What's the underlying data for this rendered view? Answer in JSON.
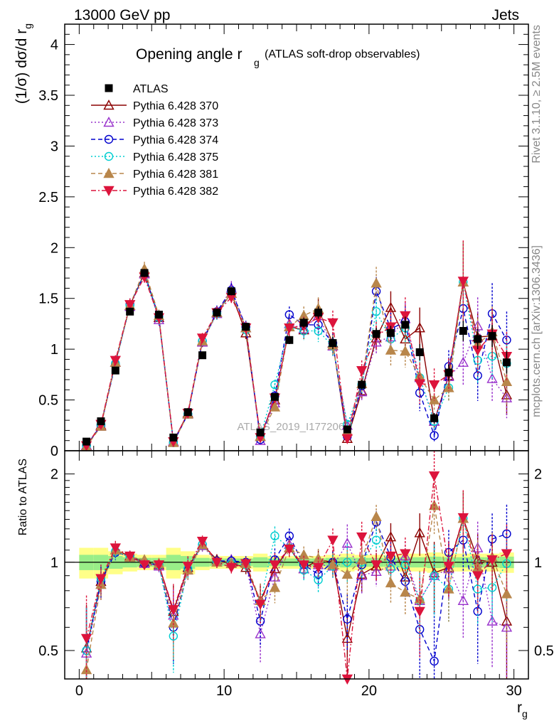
{
  "header": {
    "left": "13000 GeV pp",
    "right": "Jets"
  },
  "side_labels": {
    "rivet": "Rivet 3.1.10, ≥ 2.5M events",
    "mcplots": "mcplots.cern.ch [arXiv:1306.3436]"
  },
  "watermark": "ATLAS_2019_I1772062",
  "chart_data": [
    {
      "type": "line",
      "title": "Opening angle r_g (ATLAS soft-drop observables)",
      "title_main": "Opening angle r",
      "title_sub": "g",
      "title_tail": "(ATLAS soft-drop observables)",
      "ylabel": "(1/σ) dσ/d r_g",
      "ylabel_main": "(1/σ) dσ/d r",
      "ylabel_sub": "g",
      "xlim": [
        -1,
        31
      ],
      "ylim": [
        0,
        4.2
      ],
      "yticks": [
        "0",
        "0.5",
        "1",
        "1.5",
        "2",
        "2.5",
        "3",
        "3.5",
        "4"
      ],
      "ytick_values": [
        0,
        0.5,
        1,
        1.5,
        2,
        2.5,
        3,
        3.5,
        4
      ],
      "legend_position": "top-left",
      "x": [
        0.5,
        1.5,
        2.5,
        3.5,
        4.5,
        5.5,
        6.5,
        7.5,
        8.5,
        9.5,
        10.5,
        11.5,
        12.5,
        13.5,
        14.5,
        15.5,
        16.5,
        17.5,
        18.5,
        19.5,
        20.5,
        21.5,
        22.5,
        23.5,
        24.5,
        25.5,
        26.5,
        27.5,
        28.5,
        29.5
      ],
      "series": [
        {
          "name": "ATLAS",
          "color": "#000000",
          "marker": "square-filled",
          "dash": "none",
          "values": [
            0.09,
            0.29,
            0.79,
            1.37,
            1.75,
            1.34,
            0.13,
            0.38,
            0.94,
            1.36,
            1.57,
            1.22,
            0.18,
            0.53,
            1.09,
            1.26,
            1.36,
            1.06,
            0.21,
            0.65,
            1.15,
            1.16,
            1.24,
            0.97,
            0.32,
            0.77,
            1.18,
            1.1,
            1.13,
            0.87
          ],
          "err": [
            0.02,
            0.02,
            0.03,
            0.03,
            0.04,
            0.04,
            0.02,
            0.02,
            0.03,
            0.04,
            0.04,
            0.04,
            0.02,
            0.03,
            0.04,
            0.05,
            0.06,
            0.06,
            0.03,
            0.05,
            0.06,
            0.07,
            0.08,
            0.08,
            0.05,
            0.08,
            0.1,
            0.1,
            0.11,
            0.11
          ]
        },
        {
          "name": "Pythia 6.428 370",
          "color": "#8b0000",
          "marker": "triangle-up-open",
          "dash": "none",
          "values": [
            0.05,
            0.25,
            0.87,
            1.43,
            1.75,
            1.31,
            0.09,
            0.37,
            1.07,
            1.36,
            1.55,
            1.16,
            0.14,
            0.5,
            1.22,
            1.19,
            1.39,
            1.06,
            0.12,
            0.59,
            1.11,
            1.41,
            1.1,
            1.21,
            0.29,
            0.74,
            1.66,
            1.12,
            1.13,
            0.55
          ],
          "err": [
            0.02,
            0.03,
            0.05,
            0.06,
            0.07,
            0.06,
            0.02,
            0.03,
            0.05,
            0.06,
            0.07,
            0.06,
            0.02,
            0.05,
            0.08,
            0.09,
            0.11,
            0.1,
            0.03,
            0.08,
            0.12,
            0.16,
            0.15,
            0.2,
            0.08,
            0.16,
            0.4,
            0.25,
            0.25,
            0.2
          ]
        },
        {
          "name": "Pythia 6.428 373",
          "color": "#9932cc",
          "marker": "triangle-up-open",
          "dash": "dotted",
          "values": [
            0.05,
            0.24,
            0.87,
            1.42,
            1.74,
            1.29,
            0.09,
            0.36,
            1.07,
            1.35,
            1.6,
            1.21,
            0.1,
            0.47,
            1.25,
            1.2,
            1.33,
            1.03,
            0.25,
            0.58,
            1.07,
            1.12,
            1.3,
            0.72,
            0.29,
            0.73,
            0.87,
            1.23,
            0.71,
            0.52
          ],
          "err": [
            0.02,
            0.03,
            0.05,
            0.06,
            0.07,
            0.06,
            0.02,
            0.03,
            0.05,
            0.06,
            0.07,
            0.06,
            0.02,
            0.05,
            0.08,
            0.09,
            0.11,
            0.1,
            0.04,
            0.08,
            0.12,
            0.15,
            0.16,
            0.18,
            0.08,
            0.16,
            0.22,
            0.28,
            0.22,
            0.2
          ]
        },
        {
          "name": "Pythia 6.428 374",
          "color": "#0000cd",
          "marker": "circle-open",
          "dash": "dashed",
          "values": [
            0.05,
            0.25,
            0.85,
            1.44,
            1.74,
            1.32,
            0.08,
            0.36,
            1.08,
            1.37,
            1.58,
            1.22,
            0.11,
            0.54,
            1.34,
            1.24,
            1.24,
            1.06,
            0.14,
            0.64,
            1.57,
            1.2,
            1.27,
            0.57,
            0.15,
            0.83,
            1.4,
            0.74,
            1.35,
            1.09
          ],
          "err": [
            0.02,
            0.03,
            0.05,
            0.06,
            0.07,
            0.06,
            0.02,
            0.03,
            0.05,
            0.06,
            0.07,
            0.06,
            0.02,
            0.05,
            0.08,
            0.09,
            0.11,
            0.1,
            0.03,
            0.08,
            0.14,
            0.16,
            0.16,
            0.18,
            0.07,
            0.16,
            0.3,
            0.25,
            0.3,
            0.28
          ]
        },
        {
          "name": "Pythia 6.428 375",
          "color": "#00ced1",
          "marker": "circle-open",
          "dash": "dotted",
          "values": [
            0.05,
            0.26,
            0.86,
            1.43,
            1.74,
            1.31,
            0.08,
            0.36,
            1.08,
            1.35,
            1.55,
            1.19,
            0.14,
            0.65,
            1.22,
            1.18,
            1.18,
            1.03,
            0.26,
            0.65,
            1.37,
            1.1,
            1.21,
            0.72,
            0.29,
            0.62,
            1.66,
            0.89,
            0.93,
            0.86
          ],
          "err": [
            0.02,
            0.03,
            0.05,
            0.06,
            0.07,
            0.06,
            0.02,
            0.03,
            0.05,
            0.06,
            0.07,
            0.06,
            0.02,
            0.05,
            0.08,
            0.09,
            0.11,
            0.1,
            0.04,
            0.08,
            0.13,
            0.15,
            0.16,
            0.18,
            0.08,
            0.14,
            0.4,
            0.22,
            0.22,
            0.22
          ]
        },
        {
          "name": "Pythia 6.428 381",
          "color": "#b8864b",
          "marker": "triangle-up-filled",
          "dash": "dashed",
          "values": [
            0.04,
            0.24,
            0.87,
            1.43,
            1.79,
            1.33,
            0.08,
            0.36,
            1.08,
            1.36,
            1.55,
            1.21,
            0.14,
            0.43,
            1.22,
            1.33,
            1.4,
            1.04,
            0.19,
            0.66,
            1.65,
            0.99,
            0.98,
            0.73,
            0.5,
            0.62,
            1.66,
            1.05,
            1.17,
            0.68
          ],
          "err": [
            0.02,
            0.03,
            0.05,
            0.06,
            0.07,
            0.06,
            0.02,
            0.03,
            0.05,
            0.06,
            0.07,
            0.06,
            0.02,
            0.05,
            0.08,
            0.09,
            0.11,
            0.1,
            0.04,
            0.08,
            0.16,
            0.15,
            0.16,
            0.18,
            0.1,
            0.14,
            0.4,
            0.25,
            0.25,
            0.22
          ]
        },
        {
          "name": "Pythia 6.428 382",
          "color": "#dc143c",
          "marker": "triangle-down-filled",
          "dash": "dashdot",
          "values": [
            0.05,
            0.26,
            0.89,
            1.44,
            1.71,
            1.31,
            0.09,
            0.37,
            1.11,
            1.36,
            1.51,
            1.21,
            0.13,
            0.52,
            1.21,
            1.23,
            1.31,
            1.26,
            0.12,
            0.79,
            1.13,
            1.22,
            1.33,
            0.66,
            0.65,
            0.75,
            1.67,
            0.99,
            1.15,
            0.93
          ],
          "err": [
            0.02,
            0.03,
            0.05,
            0.06,
            0.07,
            0.06,
            0.02,
            0.03,
            0.05,
            0.06,
            0.07,
            0.06,
            0.02,
            0.05,
            0.08,
            0.09,
            0.11,
            0.12,
            0.03,
            0.1,
            0.14,
            0.16,
            0.18,
            0.2,
            0.16,
            0.16,
            0.4,
            0.25,
            0.25,
            0.24
          ]
        }
      ]
    },
    {
      "type": "line",
      "ylabel": "Ratio to ATLAS",
      "xlabel": "r_g",
      "xlabel_main": "r",
      "xlabel_sub": "g",
      "xlim": [
        -1,
        31
      ],
      "ylim": [
        0.4,
        2.4
      ],
      "yscale": "log",
      "xticks": [
        "0",
        "10",
        "20",
        "30"
      ],
      "xtick_values": [
        0,
        10,
        20,
        30
      ],
      "yticks": [
        "0.5",
        "1",
        "2"
      ],
      "ytick_values": [
        0.5,
        1,
        2
      ],
      "reference_line": 1,
      "uncertainty_bands": {
        "outer_color": "#ffff88",
        "inner_color": "#99ee88",
        "outer_halfwidth": [
          0.12,
          0.12,
          0.09,
          0.07,
          0.06,
          0.06,
          0.12,
          0.09,
          0.06,
          0.05,
          0.05,
          0.05,
          0.07,
          0.05,
          0.05,
          0.05,
          0.05,
          0.06,
          0.07,
          0.06,
          0.06,
          0.06,
          0.07,
          0.07,
          0.08,
          0.07,
          0.07,
          0.07,
          0.07,
          0.08
        ],
        "inner_halfwidth": [
          0.06,
          0.06,
          0.05,
          0.04,
          0.035,
          0.035,
          0.06,
          0.05,
          0.035,
          0.03,
          0.03,
          0.03,
          0.04,
          0.03,
          0.03,
          0.03,
          0.03,
          0.035,
          0.04,
          0.035,
          0.035,
          0.035,
          0.04,
          0.04,
          0.045,
          0.04,
          0.04,
          0.04,
          0.04,
          0.045
        ]
      },
      "x": [
        0.5,
        1.5,
        2.5,
        3.5,
        4.5,
        5.5,
        6.5,
        7.5,
        8.5,
        9.5,
        10.5,
        11.5,
        12.5,
        13.5,
        14.5,
        15.5,
        16.5,
        17.5,
        18.5,
        19.5,
        20.5,
        21.5,
        22.5,
        23.5,
        24.5,
        25.5,
        26.5,
        27.5,
        28.5,
        29.5
      ],
      "series": [
        {
          "name": "Pythia 6.428 370",
          "values": [
            0.51,
            0.86,
            1.1,
            1.05,
            1.0,
            0.98,
            0.68,
            0.96,
            1.15,
            1.02,
            0.99,
            0.96,
            0.74,
            0.95,
            1.12,
            0.95,
            1.02,
            1.0,
            0.55,
            0.91,
            0.97,
            1.22,
            0.89,
            1.26,
            0.92,
            0.96,
            1.41,
            1.02,
            1.0,
            0.63
          ]
        },
        {
          "name": "Pythia 6.428 373",
          "values": [
            0.49,
            0.84,
            1.1,
            1.04,
            0.99,
            0.97,
            0.66,
            0.94,
            1.14,
            1.0,
            1.02,
            0.99,
            0.57,
            0.89,
            1.15,
            0.95,
            0.98,
            0.97,
            1.16,
            0.9,
            0.93,
            0.97,
            1.05,
            0.74,
            0.9,
            0.95,
            0.74,
            1.12,
            0.63,
            0.6
          ]
        },
        {
          "name": "Pythia 6.428 374",
          "values": [
            0.5,
            0.86,
            1.08,
            1.05,
            0.99,
            0.98,
            0.6,
            0.94,
            1.15,
            1.01,
            1.01,
            1.0,
            0.63,
            1.02,
            1.23,
            0.98,
            0.91,
            1.0,
            0.64,
            0.98,
            1.37,
            1.04,
            0.86,
            0.59,
            0.46,
            1.08,
            1.19,
            0.68,
            1.2,
            1.25
          ]
        },
        {
          "name": "Pythia 6.428 375",
          "values": [
            0.5,
            0.88,
            1.09,
            1.04,
            1.0,
            0.98,
            0.56,
            0.95,
            1.15,
            1.0,
            0.99,
            0.98,
            0.73,
            1.23,
            1.12,
            0.94,
            0.87,
            0.97,
            1.0,
            1.0,
            1.19,
            0.95,
            0.98,
            0.74,
            0.9,
            0.81,
            1.41,
            0.81,
            0.82,
            0.99
          ]
        },
        {
          "name": "Pythia 6.428 381",
          "values": [
            0.43,
            0.84,
            1.1,
            1.04,
            1.02,
            0.99,
            0.62,
            0.94,
            1.15,
            1.0,
            0.99,
            0.99,
            0.74,
            0.82,
            1.12,
            1.06,
            1.03,
            0.98,
            0.91,
            1.02,
            1.43,
            0.85,
            0.79,
            0.75,
            1.56,
            0.81,
            1.41,
            0.96,
            1.04,
            0.78
          ]
        },
        {
          "name": "Pythia 6.428 382",
          "values": [
            0.55,
            0.88,
            1.12,
            1.05,
            0.98,
            0.98,
            0.69,
            0.97,
            1.18,
            1.0,
            0.96,
            0.99,
            0.72,
            0.98,
            1.11,
            0.98,
            0.96,
            1.19,
            0.38,
            1.22,
            0.98,
            1.05,
            1.07,
            0.68,
            1.97,
            0.97,
            1.42,
            0.9,
            1.02,
            1.07
          ]
        }
      ]
    }
  ]
}
